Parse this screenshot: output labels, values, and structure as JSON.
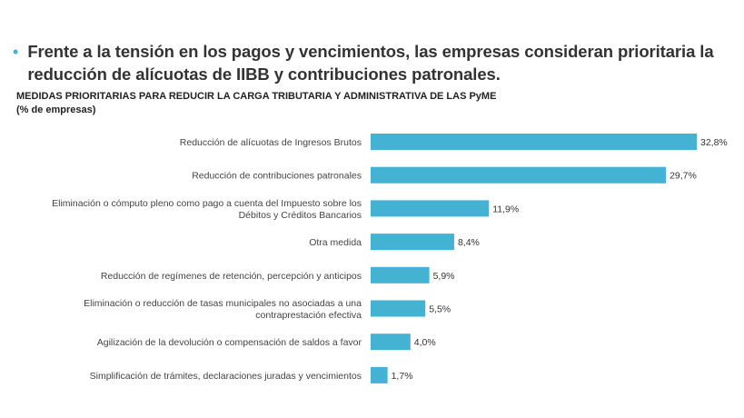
{
  "headline": {
    "bullet": "•",
    "text": "Frente a la tensión en los pagos y vencimientos, las empresas consideran prioritaria la reducción de alícuotas de IIBB y contribuciones patronales."
  },
  "chart_data": {
    "type": "bar",
    "orientation": "horizontal",
    "title": "MEDIDAS PRIORITARIAS PARA REDUCIR LA CARGA TRIBUTARIA Y ADMINISTRATIVA DE LAS PyME",
    "subtitle": "(% de empresas)",
    "xlim": [
      0,
      32.8
    ],
    "grid": false,
    "legend": "none",
    "bar_color": "#43b2d3",
    "categories": [
      [
        "Reducción de alícuotas de Ingresos Brutos"
      ],
      [
        "Reducción de contribuciones patronales"
      ],
      [
        "Eliminación o cómputo pleno como pago a cuenta del Impuesto sobre los",
        "Débitos y Créditos Bancarios"
      ],
      [
        "Otra medida"
      ],
      [
        "Reducción de regímenes de retención, percepción y anticipos"
      ],
      [
        "Eliminación o reducción de tasas municipales no asociadas a una",
        "contraprestación efectiva"
      ],
      [
        "Agilización de la devolución o compensación de saldos a favor"
      ],
      [
        "Simplificación de trámites, declaraciones juradas y vencimientos"
      ]
    ],
    "values": [
      32.8,
      29.7,
      11.9,
      8.4,
      5.9,
      5.5,
      4.0,
      1.7
    ],
    "value_labels": [
      "32,8%",
      "29,7%",
      "11,9%",
      "8,4%",
      "5,9%",
      "5,5%",
      "4,0%",
      "1,7%"
    ]
  }
}
